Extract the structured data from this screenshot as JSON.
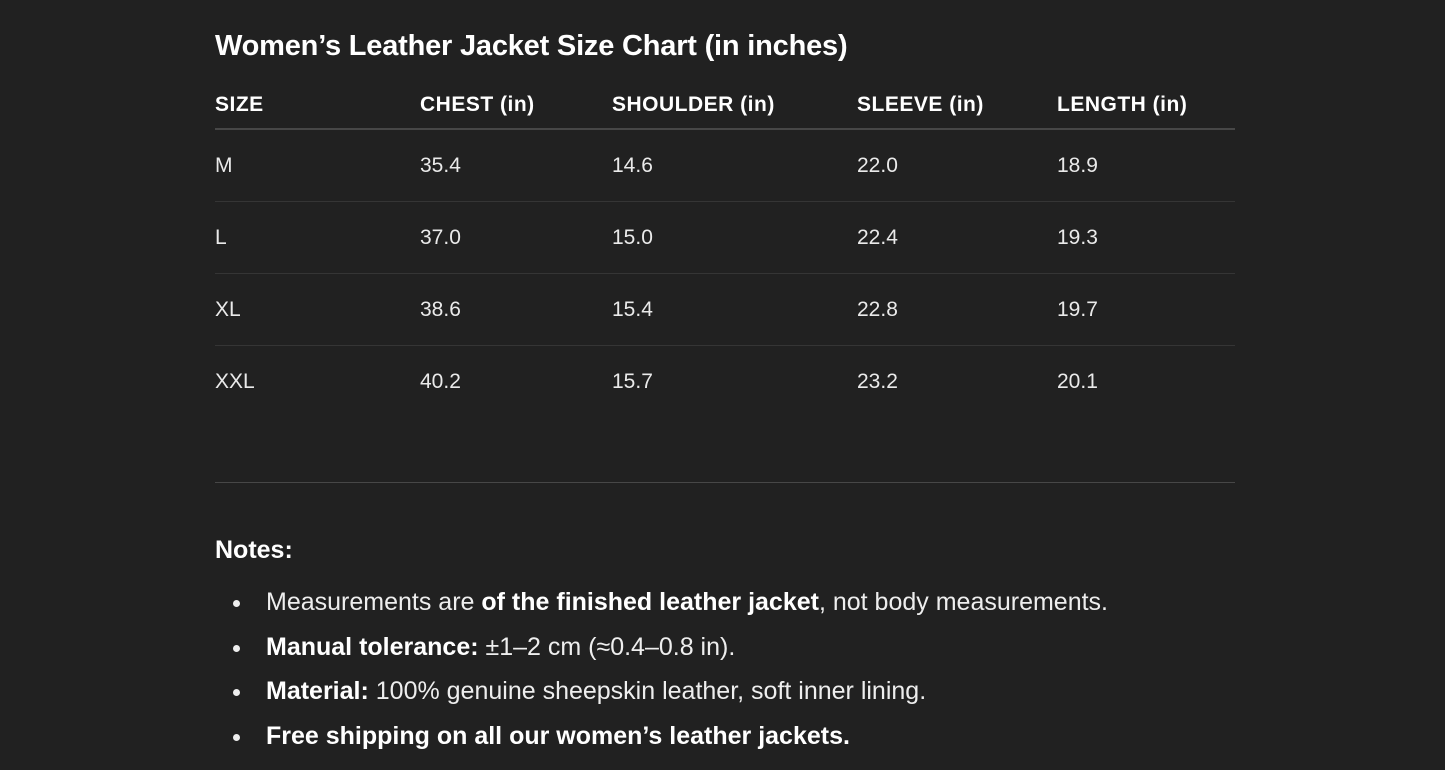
{
  "title": "Women’s Leather Jacket Size Chart (in inches)",
  "table": {
    "headers": [
      "SIZE",
      "CHEST (in)",
      "SHOULDER (in)",
      "SLEEVE (in)",
      "LENGTH (in)"
    ],
    "rows": [
      [
        "M",
        "35.4",
        "14.6",
        "22.0",
        "18.9"
      ],
      [
        "L",
        "37.0",
        "15.0",
        "22.4",
        "19.3"
      ],
      [
        "XL",
        "38.6",
        "15.4",
        "22.8",
        "19.7"
      ],
      [
        "XXL",
        "40.2",
        "15.7",
        "23.2",
        "20.1"
      ]
    ]
  },
  "notes": {
    "heading": "Notes:",
    "items": [
      {
        "a": "Measurements are ",
        "b": "of the finished leather jacket",
        "c": ", not body measurements."
      },
      {
        "b": "Manual tolerance:",
        "c": " ±1–2 cm (≈0.4–0.8 in)."
      },
      {
        "b": "Material:",
        "c": " 100% genuine sheepskin leather, soft inner lining."
      },
      {
        "b": "Free shipping on all our women’s leather jackets."
      }
    ]
  }
}
